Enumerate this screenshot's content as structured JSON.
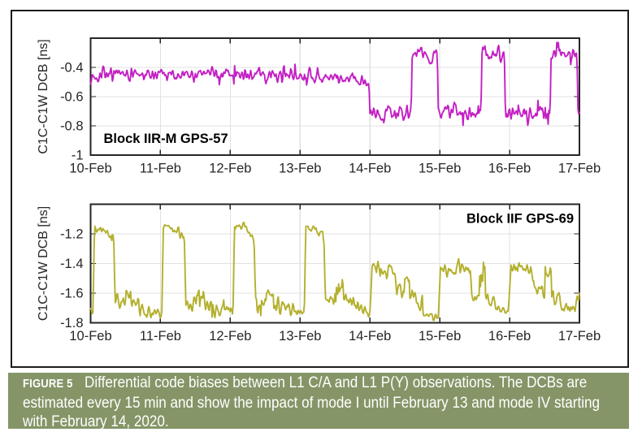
{
  "figure": {
    "frame_color": "#1c1c1c",
    "caption": {
      "label": "FIGURE 5",
      "lines": [
        "Differential code biases between L1 C/A and L1 P(Y) observations. The DCBs are",
        "estimated every 15 min and show the impact of mode I until February 13 and mode IV starting",
        "with February 14, 2020."
      ],
      "bg_color": "#859567",
      "text_color": "#ffffff"
    }
  },
  "chart_data": [
    {
      "type": "line",
      "series_label": "Block IIR-M GPS-57",
      "label_corner": "bottom-left",
      "line_color": "#c320c3",
      "ylabel": "C1C-C1W DCB [ns]",
      "ylim": [
        -1.0,
        -0.2
      ],
      "yticks": [
        -1,
        -0.8,
        -0.6,
        -0.4
      ],
      "ytick_labels": [
        "-1",
        "-0.8",
        "-0.6",
        "-0.4"
      ],
      "xlim_days": [
        10,
        17
      ],
      "xtick_labels": [
        "10-Feb",
        "11-Feb",
        "12-Feb",
        "13-Feb",
        "14-Feb",
        "15-Feb",
        "16-Feb",
        "17-Feb"
      ],
      "sampling_minutes": 15,
      "grid": true,
      "seed": 13,
      "noise": {
        "smooth_window": 2,
        "spike_prob": 0.022,
        "spike_scale": 2.2
      },
      "segments": [
        [
          10.0,
          13.2,
          -0.445,
          -0.45,
          0.022
        ],
        [
          13.2,
          13.985,
          -0.465,
          -0.485,
          0.02
        ],
        [
          13.985,
          14.0,
          -0.485,
          -0.715,
          0.006
        ],
        [
          14.0,
          14.59,
          -0.715,
          -0.715,
          0.027
        ],
        [
          14.59,
          14.605,
          -0.715,
          -0.315,
          0.006
        ],
        [
          14.605,
          14.965,
          -0.31,
          -0.32,
          0.022
        ],
        [
          14.965,
          14.98,
          -0.32,
          -0.705,
          0.006
        ],
        [
          14.98,
          15.59,
          -0.705,
          -0.715,
          0.027
        ],
        [
          15.59,
          15.605,
          -0.715,
          -0.3,
          0.006
        ],
        [
          15.605,
          15.925,
          -0.295,
          -0.31,
          0.022
        ],
        [
          15.925,
          15.94,
          -0.31,
          -0.705,
          0.006
        ],
        [
          15.94,
          16.58,
          -0.705,
          -0.715,
          0.027
        ],
        [
          16.58,
          16.595,
          -0.715,
          -0.3,
          0.006
        ],
        [
          16.595,
          16.965,
          -0.295,
          -0.315,
          0.022
        ],
        [
          16.965,
          16.98,
          -0.315,
          -0.705,
          0.006
        ],
        [
          16.98,
          17.001,
          -0.705,
          -0.7,
          0.015
        ]
      ]
    },
    {
      "type": "line",
      "series_label": "Block IIF GPS-69",
      "label_corner": "top-right",
      "line_color": "#b3b02e",
      "ylabel": "C1C-C1W DCB [ns]",
      "ylim": [
        -1.8,
        -1.0
      ],
      "yticks": [
        -1.8,
        -1.6,
        -1.4,
        -1.2
      ],
      "ytick_labels": [
        "-1.8",
        "-1.6",
        "-1.4",
        "-1.2"
      ],
      "xlim_days": [
        10,
        17
      ],
      "xtick_labels": [
        "10-Feb",
        "11-Feb",
        "12-Feb",
        "13-Feb",
        "14-Feb",
        "15-Feb",
        "16-Feb",
        "17-Feb"
      ],
      "sampling_minutes": 15,
      "grid": true,
      "seed": 47,
      "noise": {
        "smooth_window": 2,
        "spike_prob": 0.022,
        "spike_scale": 2.2
      },
      "segments": [
        [
          10.0,
          10.035,
          -1.7,
          -1.72,
          0.015
        ],
        [
          10.035,
          10.055,
          -1.72,
          -1.16,
          0.006
        ],
        [
          10.055,
          10.2,
          -1.155,
          -1.17,
          0.016
        ],
        [
          10.2,
          10.33,
          -1.17,
          -1.215,
          0.018
        ],
        [
          10.33,
          10.35,
          -1.215,
          -1.63,
          0.006
        ],
        [
          10.35,
          10.5,
          -1.655,
          -1.67,
          0.03
        ],
        [
          10.5,
          10.58,
          -1.6,
          -1.6,
          0.025
        ],
        [
          10.58,
          10.72,
          -1.67,
          -1.68,
          0.03
        ],
        [
          10.72,
          11.02,
          -1.71,
          -1.73,
          0.022
        ],
        [
          11.02,
          11.04,
          -1.73,
          -1.16,
          0.006
        ],
        [
          11.04,
          11.2,
          -1.15,
          -1.16,
          0.015
        ],
        [
          11.2,
          11.34,
          -1.17,
          -1.2,
          0.018
        ],
        [
          11.34,
          11.36,
          -1.2,
          -1.6,
          0.006
        ],
        [
          11.36,
          11.52,
          -1.66,
          -1.68,
          0.028
        ],
        [
          11.52,
          11.62,
          -1.61,
          -1.62,
          0.025
        ],
        [
          11.62,
          11.8,
          -1.67,
          -1.69,
          0.028
        ],
        [
          11.8,
          12.04,
          -1.7,
          -1.72,
          0.02
        ],
        [
          12.04,
          12.06,
          -1.72,
          -1.15,
          0.006
        ],
        [
          12.06,
          12.22,
          -1.145,
          -1.16,
          0.016
        ],
        [
          12.22,
          12.34,
          -1.17,
          -1.21,
          0.018
        ],
        [
          12.34,
          12.36,
          -1.21,
          -1.62,
          0.006
        ],
        [
          12.36,
          12.52,
          -1.655,
          -1.67,
          0.028
        ],
        [
          12.52,
          12.62,
          -1.595,
          -1.6,
          0.025
        ],
        [
          12.62,
          12.82,
          -1.67,
          -1.69,
          0.028
        ],
        [
          12.82,
          13.06,
          -1.71,
          -1.74,
          0.02
        ],
        [
          13.06,
          13.08,
          -1.74,
          -1.16,
          0.006
        ],
        [
          13.08,
          13.22,
          -1.15,
          -1.17,
          0.016
        ],
        [
          13.22,
          13.34,
          -1.17,
          -1.21,
          0.018
        ],
        [
          13.34,
          13.36,
          -1.21,
          -1.63,
          0.006
        ],
        [
          13.36,
          13.52,
          -1.65,
          -1.66,
          0.028
        ],
        [
          13.52,
          13.62,
          -1.585,
          -1.59,
          0.025
        ],
        [
          13.62,
          13.86,
          -1.66,
          -1.68,
          0.028
        ],
        [
          13.86,
          14.0,
          -1.71,
          -1.74,
          0.02
        ],
        [
          14.0,
          14.03,
          -1.74,
          -1.45,
          0.008
        ],
        [
          14.03,
          14.36,
          -1.435,
          -1.465,
          0.024
        ],
        [
          14.36,
          14.38,
          -1.465,
          -1.58,
          0.008
        ],
        [
          14.38,
          14.49,
          -1.585,
          -1.585,
          0.022
        ],
        [
          14.49,
          14.57,
          -1.475,
          -1.48,
          0.025
        ],
        [
          14.57,
          14.76,
          -1.62,
          -1.65,
          0.028
        ],
        [
          14.76,
          14.98,
          -1.73,
          -1.76,
          0.016
        ],
        [
          14.98,
          15.01,
          -1.76,
          -1.43,
          0.008
        ],
        [
          15.01,
          15.44,
          -1.425,
          -1.455,
          0.026
        ],
        [
          15.44,
          15.46,
          -1.455,
          -1.62,
          0.008
        ],
        [
          15.46,
          15.57,
          -1.63,
          -1.63,
          0.022
        ],
        [
          15.57,
          15.65,
          -1.465,
          -1.47,
          0.028
        ],
        [
          15.65,
          15.82,
          -1.64,
          -1.66,
          0.028
        ],
        [
          15.82,
          15.98,
          -1.71,
          -1.74,
          0.016
        ],
        [
          15.98,
          16.02,
          -1.74,
          -1.43,
          0.008
        ],
        [
          16.02,
          16.31,
          -1.425,
          -1.445,
          0.024
        ],
        [
          16.31,
          16.34,
          -1.445,
          -1.56,
          0.008
        ],
        [
          16.34,
          16.5,
          -1.57,
          -1.6,
          0.026
        ],
        [
          16.5,
          16.6,
          -1.465,
          -1.47,
          0.026
        ],
        [
          16.6,
          16.8,
          -1.62,
          -1.68,
          0.028
        ],
        [
          16.8,
          16.94,
          -1.7,
          -1.7,
          0.022
        ],
        [
          16.94,
          17.001,
          -1.66,
          -1.62,
          0.018
        ]
      ]
    }
  ]
}
